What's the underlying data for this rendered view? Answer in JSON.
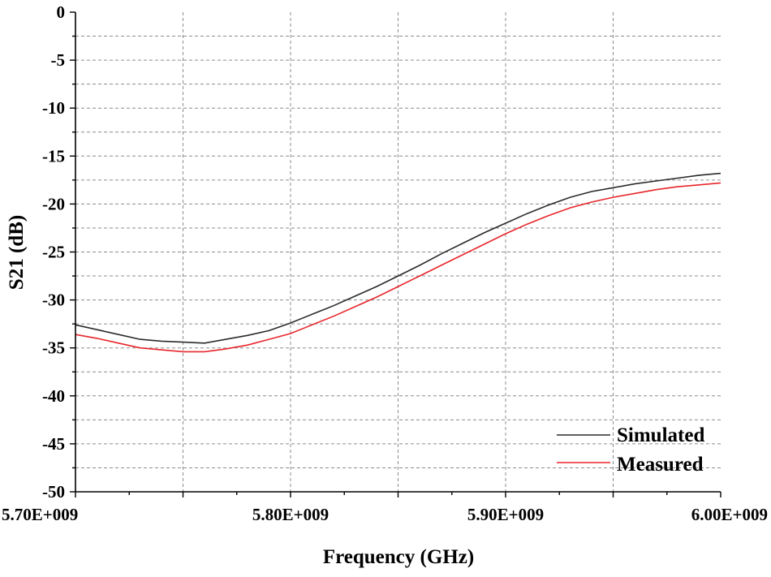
{
  "chart_data": {
    "type": "line",
    "title": "",
    "xlabel": "Frequency (GHz)",
    "ylabel": "S21 (dB)",
    "xlim": [
      5700000000.0,
      6000000000.0
    ],
    "ylim": [
      -50,
      0
    ],
    "x_ticks": [
      5700000000.0,
      5750000000.0,
      5800000000.0,
      5850000000.0,
      5900000000.0,
      5950000000.0,
      6000000000.0
    ],
    "x_tick_labels": [
      "5.70E+009",
      "",
      "5.80E+009",
      "",
      "5.90E+009",
      "",
      "6.00E+009"
    ],
    "y_ticks": [
      0,
      -5,
      -10,
      -15,
      -20,
      -25,
      -30,
      -35,
      -40,
      -45,
      -50
    ],
    "y_tick_labels": [
      "0",
      "-5",
      "-10",
      "-15",
      "-20",
      "-25",
      "-30",
      "-35",
      "-40",
      "-45",
      "-50"
    ],
    "grid": true,
    "legend_position": "bottom-right",
    "series": [
      {
        "name": "Simulated",
        "color": "#2b2b2b",
        "x": [
          5700000000.0,
          5710000000.0,
          5720000000.0,
          5730000000.0,
          5740000000.0,
          5750000000.0,
          5760000000.0,
          5770000000.0,
          5780000000.0,
          5790000000.0,
          5800000000.0,
          5810000000.0,
          5820000000.0,
          5830000000.0,
          5840000000.0,
          5850000000.0,
          5860000000.0,
          5870000000.0,
          5880000000.0,
          5890000000.0,
          5900000000.0,
          5910000000.0,
          5920000000.0,
          5930000000.0,
          5940000000.0,
          5950000000.0,
          5960000000.0,
          5970000000.0,
          5980000000.0,
          5990000000.0,
          6000000000.0
        ],
        "values": [
          -32.6,
          -33.1,
          -33.6,
          -34.1,
          -34.3,
          -34.4,
          -34.5,
          -34.1,
          -33.7,
          -33.2,
          -32.4,
          -31.5,
          -30.6,
          -29.6,
          -28.6,
          -27.5,
          -26.4,
          -25.2,
          -24.1,
          -23.0,
          -22.0,
          -21.0,
          -20.1,
          -19.3,
          -18.7,
          -18.3,
          -17.9,
          -17.6,
          -17.3,
          -17.0,
          -16.8
        ]
      },
      {
        "name": "Measured",
        "color": "#e8262b",
        "x": [
          5700000000.0,
          5710000000.0,
          5720000000.0,
          5730000000.0,
          5740000000.0,
          5750000000.0,
          5760000000.0,
          5770000000.0,
          5780000000.0,
          5790000000.0,
          5800000000.0,
          5810000000.0,
          5820000000.0,
          5830000000.0,
          5840000000.0,
          5850000000.0,
          5860000000.0,
          5870000000.0,
          5880000000.0,
          5890000000.0,
          5900000000.0,
          5910000000.0,
          5920000000.0,
          5930000000.0,
          5940000000.0,
          5950000000.0,
          5960000000.0,
          5970000000.0,
          5980000000.0,
          5990000000.0,
          6000000000.0
        ],
        "values": [
          -33.6,
          -34.0,
          -34.5,
          -35.0,
          -35.2,
          -35.4,
          -35.4,
          -35.1,
          -34.7,
          -34.1,
          -33.5,
          -32.6,
          -31.7,
          -30.7,
          -29.7,
          -28.6,
          -27.5,
          -26.4,
          -25.3,
          -24.2,
          -23.1,
          -22.1,
          -21.2,
          -20.4,
          -19.8,
          -19.3,
          -18.9,
          -18.5,
          -18.2,
          -18.0,
          -17.8
        ]
      }
    ]
  }
}
